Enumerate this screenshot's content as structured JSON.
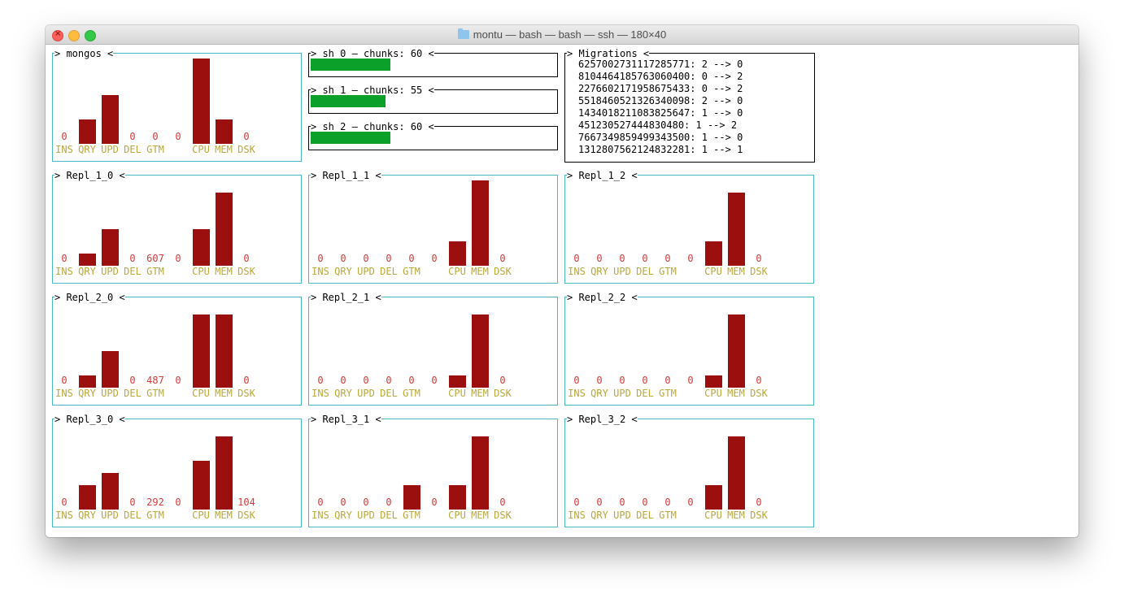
{
  "window": {
    "title": "montu — bash — bash — ssh — 180×40",
    "accent": "#4ab7c4",
    "bar_color": "#9b0f0f",
    "value_color": "#d13b3b",
    "label_color": "#b9a83b",
    "progress_color": "#0aa02a"
  },
  "metric_labels": [
    "INS",
    "QRY",
    "UPD",
    "DEL",
    "GTM",
    "",
    "CPU",
    "MEM",
    "DSK"
  ],
  "panels": [
    {
      "name": "mongos",
      "values": [
        "0",
        "",
        "",
        "0",
        "0",
        "0",
        "",
        "",
        "0"
      ],
      "bars": [
        0,
        2,
        4,
        0,
        0,
        0,
        7,
        2,
        0
      ]
    },
    {
      "name": "Repl_1_0",
      "values": [
        "0",
        "",
        "",
        "0",
        "607",
        "0",
        "",
        "",
        "0"
      ],
      "bars": [
        0,
        1,
        3,
        0,
        0,
        0,
        3,
        6,
        0
      ]
    },
    {
      "name": "Repl_1_1",
      "values": [
        "0",
        "0",
        "0",
        "0",
        "0",
        "0",
        "",
        "",
        "0"
      ],
      "bars": [
        0,
        0,
        0,
        0,
        0,
        0,
        2,
        7,
        0
      ]
    },
    {
      "name": "Repl_1_2",
      "values": [
        "0",
        "0",
        "0",
        "0",
        "0",
        "0",
        "",
        "",
        "0"
      ],
      "bars": [
        0,
        0,
        0,
        0,
        0,
        0,
        2,
        6,
        0
      ]
    },
    {
      "name": "Repl_2_0",
      "values": [
        "0",
        "",
        "",
        "0",
        "487",
        "0",
        "",
        "",
        "0"
      ],
      "bars": [
        0,
        1,
        3,
        0,
        0,
        0,
        6,
        6,
        0
      ]
    },
    {
      "name": "Repl_2_1",
      "values": [
        "0",
        "0",
        "0",
        "0",
        "0",
        "0",
        "",
        "",
        "0"
      ],
      "bars": [
        0,
        0,
        0,
        0,
        0,
        0,
        1,
        6,
        0
      ]
    },
    {
      "name": "Repl_2_2",
      "values": [
        "0",
        "0",
        "0",
        "0",
        "0",
        "0",
        "",
        "",
        "0"
      ],
      "bars": [
        0,
        0,
        0,
        0,
        0,
        0,
        1,
        6,
        0
      ]
    },
    {
      "name": "Repl_3_0",
      "values": [
        "0",
        "",
        "",
        "0",
        "292",
        "0",
        "",
        "",
        "104"
      ],
      "bars": [
        0,
        2,
        3,
        0,
        0,
        0,
        4,
        6,
        0
      ]
    },
    {
      "name": "Repl_3_1",
      "values": [
        "0",
        "0",
        "0",
        "0",
        "",
        "0",
        "",
        "",
        "0"
      ],
      "bars": [
        0,
        0,
        0,
        0,
        2,
        0,
        2,
        6,
        0
      ]
    },
    {
      "name": "Repl_3_2",
      "values": [
        "0",
        "0",
        "0",
        "0",
        "0",
        "0",
        "",
        "",
        "0"
      ],
      "bars": [
        0,
        0,
        0,
        0,
        0,
        0,
        2,
        6,
        0
      ]
    }
  ],
  "shards": [
    {
      "title": "sh_0 – chunks: 60",
      "fill": 0.32
    },
    {
      "title": "sh_1 – chunks: 55",
      "fill": 0.3
    },
    {
      "title": "sh_2 – chunks: 60",
      "fill": 0.32
    }
  ],
  "migrations": {
    "title": "Migrations",
    "lines": [
      "6257002731117285771: 2 --> 0",
      "8104464185763060400: 0 --> 2",
      "2276602171958675433: 0 --> 2",
      "5518460521326340098: 2 --> 0",
      "1434018211083825647: 1 --> 0",
      "451230527444830480: 1 --> 2",
      "7667349859499343500: 1 --> 0",
      "1312807562124832281: 1 --> 1"
    ]
  }
}
